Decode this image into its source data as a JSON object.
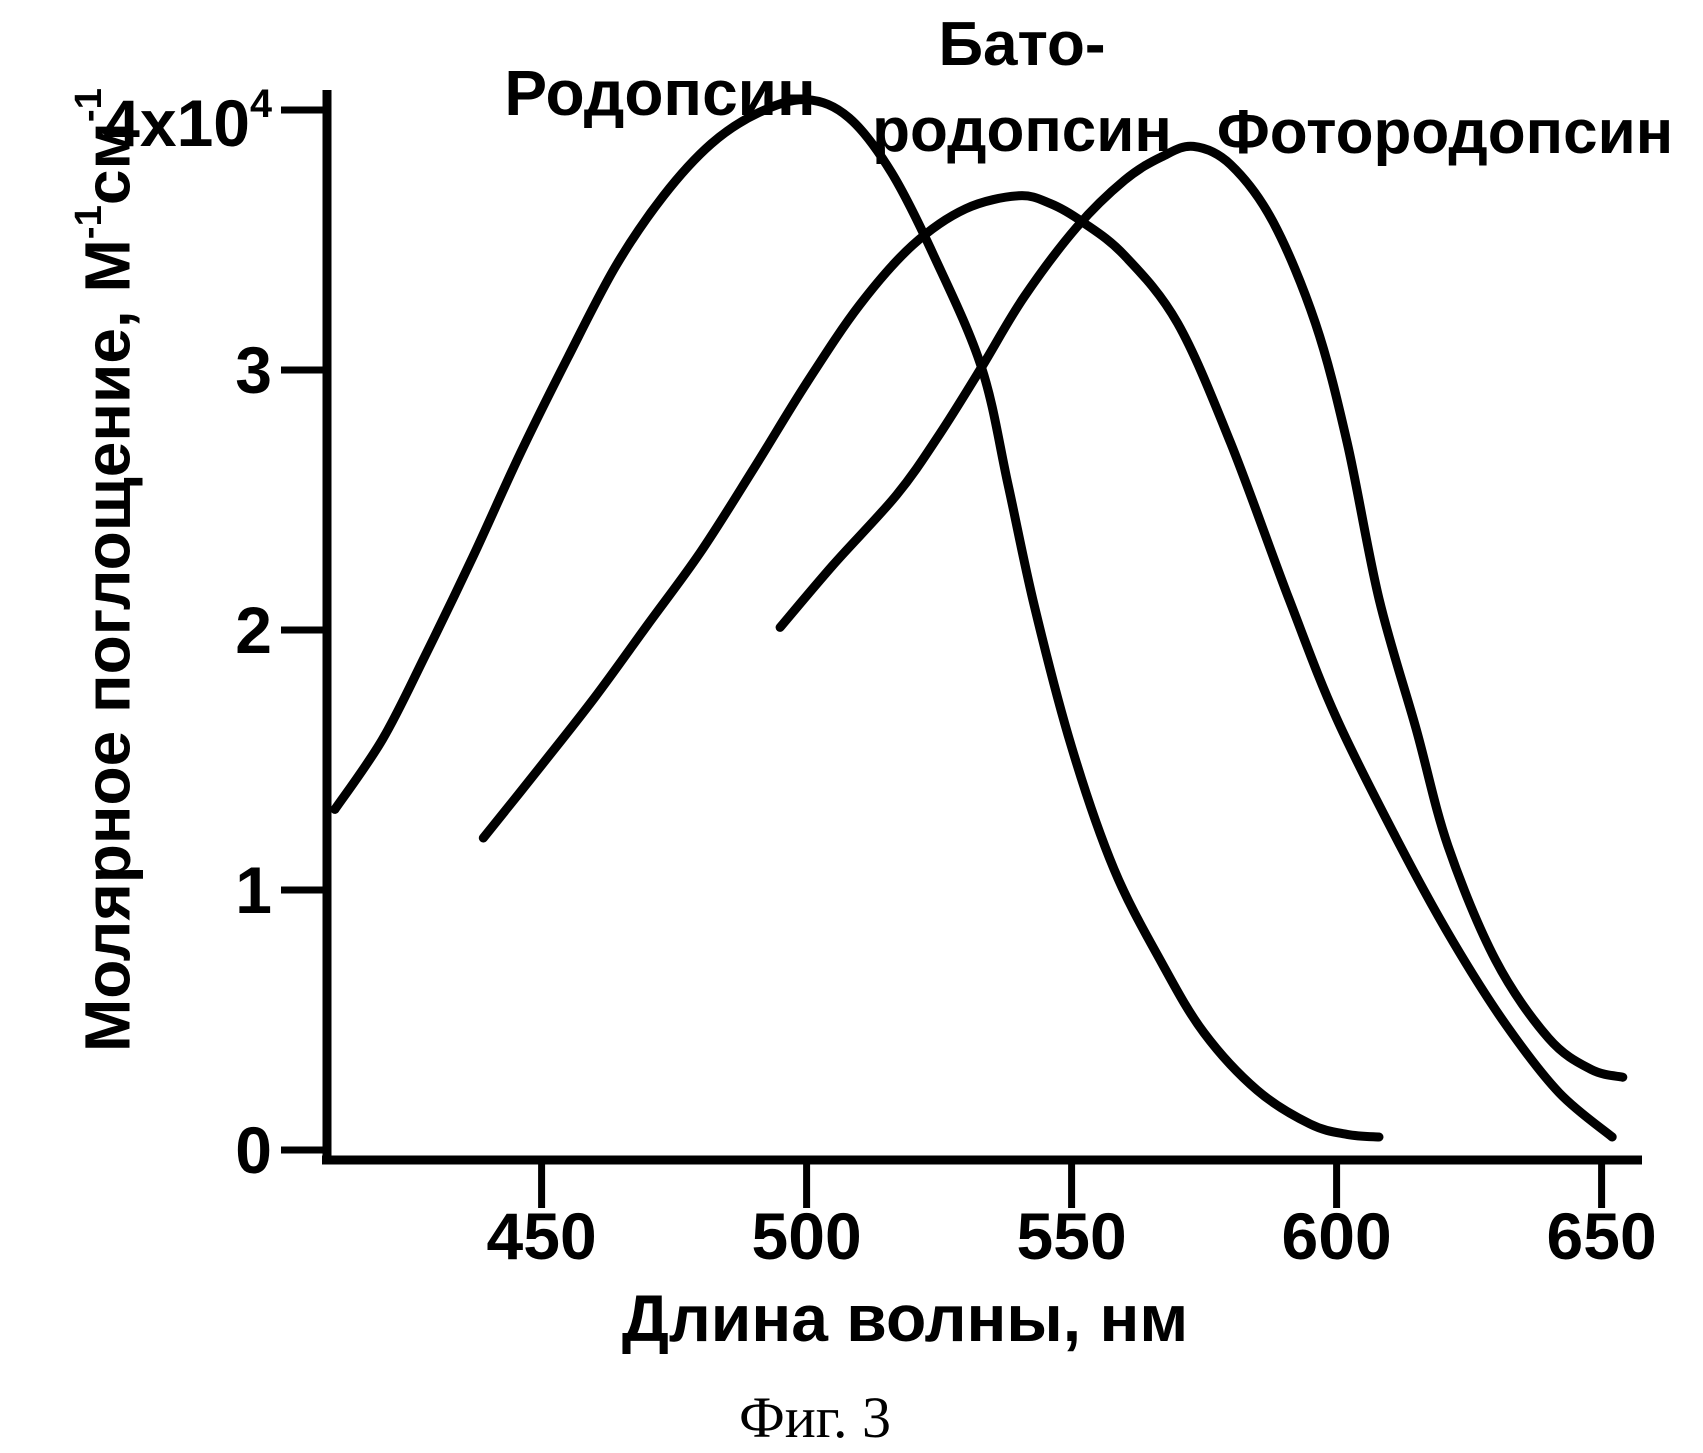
{
  "figure": {
    "caption": "Фиг. 3",
    "background_color": "#ffffff",
    "ink_color": "#000000"
  },
  "chart_data": {
    "type": "line",
    "title": "",
    "xlabel": "Длина волны, нм",
    "ylabel": "Молярное поглощение, М⁻¹см⁻¹",
    "ylabel_parts": [
      {
        "text": "Молярное поглощение, М"
      },
      {
        "sup": "-1"
      },
      {
        "text": "см"
      },
      {
        "sup": "-1"
      }
    ],
    "xlim": [
      409,
      656
    ],
    "ylim": [
      0,
      4.3
    ],
    "x_unit": "нм",
    "y_unit_scale": "10⁴",
    "grid": false,
    "legend_position": "labels-above-curves",
    "x_ticks": [
      450,
      500,
      550,
      600,
      650
    ],
    "y_ticks": [
      {
        "v": 0,
        "label": "0"
      },
      {
        "v": 1,
        "label": "1"
      },
      {
        "v": 2,
        "label": "2"
      },
      {
        "v": 3,
        "label": "3"
      },
      {
        "v": 4,
        "label": "4x10",
        "sup": "4"
      }
    ],
    "series": [
      {
        "name": "Родопсин",
        "label": "Родопсин",
        "peak_nm": 500,
        "peak_value_1e4": 4.04,
        "points": [
          [
            411,
            1.31
          ],
          [
            420,
            1.58
          ],
          [
            428,
            1.9
          ],
          [
            437,
            2.28
          ],
          [
            446,
            2.68
          ],
          [
            455,
            3.05
          ],
          [
            464,
            3.4
          ],
          [
            473,
            3.67
          ],
          [
            482,
            3.87
          ],
          [
            491,
            3.99
          ],
          [
            500,
            4.04
          ],
          [
            508,
            3.97
          ],
          [
            516,
            3.76
          ],
          [
            524,
            3.44
          ],
          [
            533,
            3.01
          ],
          [
            538,
            2.56
          ],
          [
            543,
            2.09
          ],
          [
            550,
            1.55
          ],
          [
            558,
            1.08
          ],
          [
            567,
            0.72
          ],
          [
            575,
            0.45
          ],
          [
            585,
            0.23
          ],
          [
            595,
            0.1
          ],
          [
            602,
            0.06
          ],
          [
            608,
            0.05
          ]
        ]
      },
      {
        "name": "Бато-родопсин",
        "label": "Бато-\nродопсин",
        "peak_nm": 540,
        "peak_value_1e4": 3.67,
        "points": [
          [
            439,
            1.2
          ],
          [
            450,
            1.48
          ],
          [
            460,
            1.74
          ],
          [
            470,
            2.02
          ],
          [
            480,
            2.3
          ],
          [
            490,
            2.62
          ],
          [
            500,
            2.95
          ],
          [
            510,
            3.25
          ],
          [
            520,
            3.48
          ],
          [
            530,
            3.62
          ],
          [
            540,
            3.67
          ],
          [
            546,
            3.64
          ],
          [
            552,
            3.57
          ],
          [
            560,
            3.44
          ],
          [
            570,
            3.18
          ],
          [
            580,
            2.72
          ],
          [
            591,
            2.12
          ],
          [
            600,
            1.66
          ],
          [
            612,
            1.17
          ],
          [
            622,
            0.8
          ],
          [
            632,
            0.48
          ],
          [
            642,
            0.22
          ],
          [
            652,
            0.05
          ]
        ]
      },
      {
        "name": "Фотородопсин",
        "label": "Фотородопсин",
        "peak_nm": 573,
        "peak_value_1e4": 3.86,
        "points": [
          [
            495,
            2.01
          ],
          [
            505,
            2.25
          ],
          [
            517,
            2.52
          ],
          [
            525,
            2.75
          ],
          [
            533,
            3.01
          ],
          [
            541,
            3.28
          ],
          [
            551,
            3.55
          ],
          [
            560,
            3.73
          ],
          [
            567,
            3.82
          ],
          [
            573,
            3.86
          ],
          [
            580,
            3.79
          ],
          [
            588,
            3.57
          ],
          [
            596,
            3.18
          ],
          [
            602,
            2.72
          ],
          [
            608,
            2.12
          ],
          [
            615,
            1.62
          ],
          [
            621,
            1.17
          ],
          [
            630,
            0.73
          ],
          [
            640,
            0.43
          ],
          [
            648,
            0.31
          ],
          [
            654,
            0.28
          ]
        ]
      }
    ]
  }
}
